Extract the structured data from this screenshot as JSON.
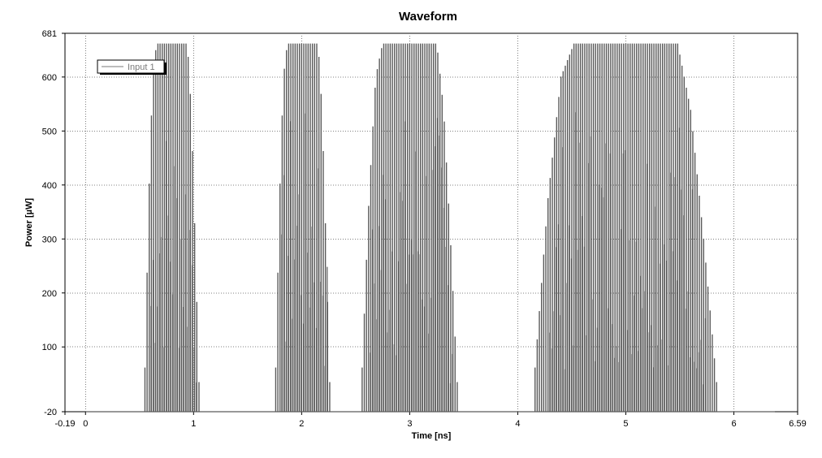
{
  "chart_data": {
    "type": "line",
    "title": "Waveform",
    "xlabel": "Time [ns]",
    "ylabel": "Power [µW]",
    "xlim": [
      -0.19,
      6.59
    ],
    "ylim": [
      -20,
      681
    ],
    "x_ticks": [
      "-0.19",
      "0",
      "1",
      "2",
      "3",
      "4",
      "5",
      "6",
      "6.59"
    ],
    "y_ticks": [
      "681",
      "600",
      "500",
      "400",
      "300",
      "200",
      "100",
      "-20"
    ],
    "grid": true,
    "legend": {
      "placement": "top-left",
      "entries": [
        "Input 1"
      ]
    },
    "baseline": -20,
    "series": [
      {
        "name": "Input 1",
        "color": "#5a5a5a",
        "envelope_profile": [
          0.12,
          0.58,
          0.91,
          1,
          1,
          1,
          1,
          1,
          1,
          1,
          1,
          1,
          0.82,
          0.47,
          0.08
        ],
        "bursts": [
          {
            "start": 0.55,
            "end": 1.04,
            "peak": 662,
            "period": 0.02
          },
          {
            "start": 1.76,
            "end": 2.26,
            "peak": 662,
            "period": 0.02
          },
          {
            "start": 2.56,
            "end": 3.44,
            "peak": 662,
            "period": 0.02
          },
          {
            "start": 4.16,
            "end": 5.84,
            "peak": 662,
            "period": 0.02
          }
        ],
        "trace_end": 6.38
      }
    ]
  }
}
